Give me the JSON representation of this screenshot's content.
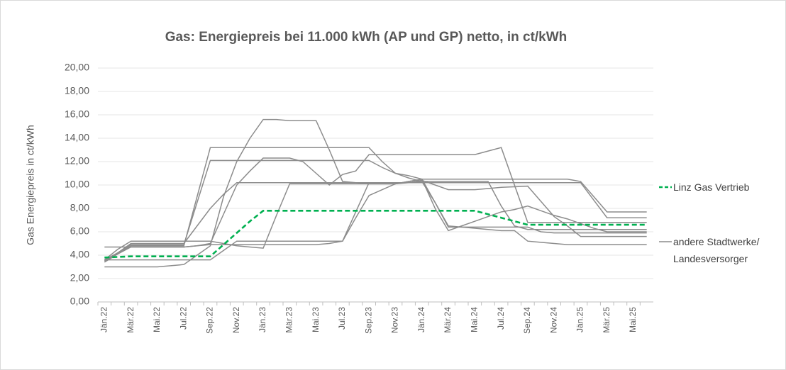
{
  "chart_data": {
    "type": "line",
    "title": "Gas: Energiepreis bei 11.000 kWh (AP und GP) netto, in ct/kWh",
    "y_label": "Gas Energiepreis in ct/kWh",
    "categories": [
      "Jän.22",
      null,
      "Mär.22",
      null,
      "Mai.22",
      null,
      "Jul.22",
      null,
      "Sep.22",
      null,
      "Nov.22",
      null,
      "Jän.23",
      null,
      "Mär.23",
      null,
      "Mai.23",
      null,
      "Jul.23",
      null,
      "Sep.23",
      null,
      "Nov.23",
      null,
      "Jän.24",
      null,
      "Mär.24",
      null,
      "Mai.24",
      null,
      "Jul.24",
      null,
      "Sep.24",
      null,
      "Nov.24",
      null,
      "Jän.25",
      null,
      "Mär.25",
      null,
      "Mai.25",
      null
    ],
    "ylim": [
      0,
      20
    ],
    "yticks": [
      {
        "value": 0,
        "label": "0,00"
      },
      {
        "value": 2,
        "label": "2,00"
      },
      {
        "value": 4,
        "label": "4,00"
      },
      {
        "value": 6,
        "label": "6,00"
      },
      {
        "value": 8,
        "label": "8,00"
      },
      {
        "value": 10,
        "label": "10,00"
      },
      {
        "value": 12,
        "label": "12,00"
      },
      {
        "value": 14,
        "label": "14,00"
      },
      {
        "value": 16,
        "label": "16,00"
      },
      {
        "value": 18,
        "label": "18,00"
      },
      {
        "value": 20,
        "label": "20,00"
      }
    ],
    "grid": true,
    "legend": "right",
    "series": [
      {
        "name": "Linz Gas Vertrieb",
        "color": "#00b050",
        "dashed": true,
        "values": [
          3.8,
          3.85,
          3.9,
          3.9,
          3.9,
          3.9,
          3.9,
          3.9,
          3.9,
          4.9,
          5.9,
          6.9,
          7.8,
          7.8,
          7.8,
          7.8,
          7.8,
          7.8,
          7.8,
          7.8,
          7.8,
          7.8,
          7.8,
          7.8,
          7.8,
          7.8,
          7.8,
          7.8,
          7.8,
          7.5,
          7.2,
          6.9,
          6.6,
          6.6,
          6.6,
          6.6,
          6.6,
          6.6,
          6.6,
          6.6,
          6.6,
          6.6
        ]
      },
      {
        "name": "andere Stadtwerke/ Landesversorger",
        "color": "#8c8c8c",
        "values": [
          3.5,
          4.1,
          4.8,
          4.8,
          4.8,
          4.8,
          4.8,
          9.0,
          13.2,
          13.2,
          13.2,
          13.2,
          13.2,
          13.2,
          13.2,
          13.2,
          13.2,
          13.2,
          13.2,
          13.2,
          13.2,
          12.0,
          11.0,
          10.6,
          10.3,
          10.3,
          10.3,
          10.3,
          10.3,
          10.3,
          8.2,
          6.5,
          6.2,
          6.2,
          6.2,
          6.2,
          6.2,
          6.2,
          6.2,
          6.2,
          6.2,
          6.2
        ]
      },
      {
        "color": "#8c8c8c",
        "values": [
          3.6,
          4.2,
          4.9,
          4.9,
          4.9,
          4.9,
          4.9,
          8.5,
          12.1,
          12.1,
          12.1,
          12.1,
          12.1,
          12.1,
          12.1,
          12.1,
          12.1,
          12.1,
          12.1,
          12.1,
          12.1,
          11.5,
          11.0,
          10.8,
          10.5,
          10.5,
          10.5,
          10.5,
          10.5,
          10.5,
          10.5,
          10.5,
          10.5,
          10.5,
          10.5,
          10.5,
          10.3,
          9.0,
          7.7,
          7.7,
          7.7,
          7.7
        ]
      },
      {
        "color": "#8c8c8c",
        "values": [
          3.0,
          3.0,
          3.0,
          3.0,
          3.0,
          3.1,
          3.2,
          4.0,
          4.8,
          9.0,
          12.0,
          14.0,
          15.6,
          15.6,
          15.5,
          15.5,
          15.5,
          13.0,
          10.3,
          10.2,
          10.1,
          10.1,
          10.1,
          10.2,
          10.3,
          8.5,
          6.4,
          6.4,
          6.4,
          6.4,
          6.4,
          6.4,
          6.4,
          6.0,
          5.9,
          5.9,
          5.9,
          5.9,
          5.9,
          5.9,
          5.9,
          5.9
        ]
      },
      {
        "color": "#8c8c8c",
        "values": [
          3.4,
          4.1,
          4.7,
          4.7,
          4.7,
          4.7,
          4.7,
          4.8,
          5.0,
          7.5,
          10.0,
          11.2,
          12.3,
          12.3,
          12.3,
          12.0,
          11.0,
          10.0,
          10.9,
          11.2,
          12.6,
          12.6,
          12.6,
          12.6,
          12.6,
          12.6,
          12.6,
          12.6,
          12.6,
          12.9,
          13.2,
          10.0,
          6.8,
          6.8,
          6.8,
          6.8,
          6.8,
          6.8,
          6.8,
          6.8,
          6.8,
          6.8
        ]
      },
      {
        "color": "#8c8c8c",
        "values": [
          3.5,
          4.2,
          5.0,
          5.0,
          5.0,
          5.0,
          5.0,
          6.5,
          8.0,
          9.2,
          10.2,
          10.2,
          10.2,
          10.2,
          10.2,
          10.2,
          10.2,
          10.2,
          10.2,
          10.2,
          10.2,
          10.2,
          10.2,
          10.2,
          10.2,
          10.2,
          10.2,
          10.2,
          10.2,
          10.2,
          10.2,
          10.2,
          10.2,
          10.2,
          10.2,
          10.2,
          10.2,
          8.7,
          7.2,
          7.2,
          7.2,
          7.2
        ]
      },
      {
        "color": "#8c8c8c",
        "values": [
          3.6,
          4.5,
          5.2,
          5.2,
          5.2,
          5.2,
          5.2,
          5.2,
          5.2,
          5.0,
          4.8,
          4.7,
          4.6,
          7.4,
          10.1,
          10.1,
          10.1,
          10.1,
          10.1,
          10.1,
          10.1,
          10.1,
          10.1,
          10.3,
          10.5,
          8.0,
          6.1,
          6.5,
          6.9,
          7.3,
          7.7,
          7.9,
          8.2,
          7.8,
          7.4,
          7.1,
          6.7,
          6.3,
          6.0,
          6.0,
          6.0,
          6.0
        ]
      },
      {
        "color": "#8c8c8c",
        "values": [
          4.7,
          4.7,
          4.7,
          4.7,
          4.7,
          4.7,
          4.7,
          4.8,
          4.9,
          4.9,
          4.9,
          4.9,
          4.9,
          4.9,
          4.9,
          4.9,
          4.9,
          5.0,
          5.2,
          7.7,
          10.2,
          10.2,
          10.2,
          10.2,
          10.4,
          10.0,
          9.6,
          9.6,
          9.6,
          9.7,
          9.8,
          9.85,
          9.9,
          8.6,
          7.3,
          6.5,
          5.6,
          5.6,
          5.6,
          5.6,
          5.6,
          5.6
        ]
      },
      {
        "color": "#8c8c8c",
        "values": [
          3.6,
          3.6,
          3.6,
          3.6,
          3.6,
          3.6,
          3.6,
          3.6,
          3.6,
          4.4,
          5.2,
          5.2,
          5.2,
          5.2,
          5.2,
          5.2,
          5.2,
          5.2,
          5.2,
          7.2,
          9.1,
          9.6,
          10.1,
          10.3,
          10.5,
          8.5,
          6.5,
          6.4,
          6.3,
          6.2,
          6.1,
          6.1,
          5.2,
          5.1,
          5.0,
          4.9,
          4.9,
          4.9,
          4.9,
          4.9,
          4.9,
          4.9
        ]
      }
    ]
  }
}
